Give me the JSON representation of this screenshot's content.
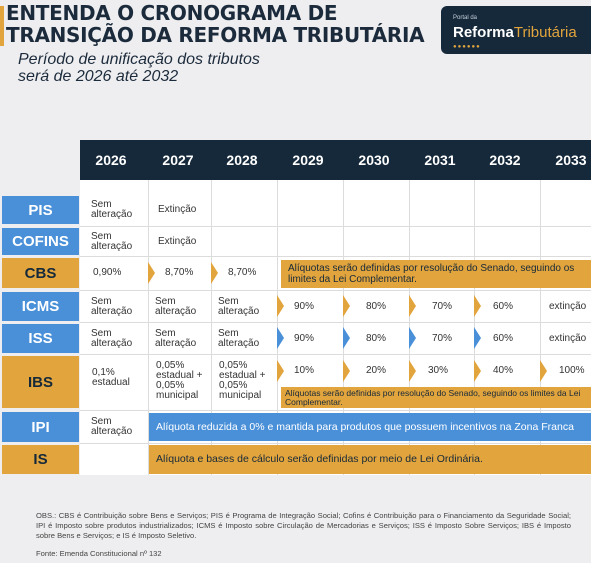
{
  "header": {
    "title_line1": "ENTENDA O CRONOGRAMA DE",
    "title_line2": "TRANSIÇÃO DA REFORMA TRIBUTÁRIA",
    "subtitle_line1": "Período de unificação dos tributos",
    "subtitle_line2": "será de 2026 até 2032"
  },
  "logo": {
    "small": "Portal da",
    "word1": "Reforma",
    "word2": "Tributária",
    "dots": "●●●●●●"
  },
  "years": [
    "2026",
    "2027",
    "2028",
    "2029",
    "2030",
    "2031",
    "2032",
    "2033"
  ],
  "rows": {
    "pis": {
      "label": "PIS",
      "c2026": "Sem alteração",
      "c2027": "Extinção"
    },
    "cofins": {
      "label": "COFINS",
      "c2026": "Sem alteração",
      "c2027": "Extinção"
    },
    "cbs": {
      "label": "CBS",
      "c2026": "0,90%",
      "c2027": "8,70%",
      "c2028": "8,70%",
      "band": "Alíquotas serão definidas por resolução do Senado, seguindo os limites da Lei Complementar."
    },
    "icms": {
      "label": "ICMS",
      "c2026": "Sem alteração",
      "c2027": "Sem alteração",
      "c2028": "Sem alteração",
      "c2029": "90%",
      "c2030": "80%",
      "c2031": "70%",
      "c2032": "60%",
      "c2033": "extinção"
    },
    "iss": {
      "label": "ISS",
      "c2026": "Sem alteração",
      "c2027": "Sem alteração",
      "c2028": "Sem alteração",
      "c2029": "90%",
      "c2030": "80%",
      "c2031": "70%",
      "c2032": "60%",
      "c2033": "extinção"
    },
    "ibs": {
      "label": "IBS",
      "c2026": "0,1% estadual",
      "c2027": "0,05% estadual + 0,05% municipal",
      "c2028": "0,05% estadual + 0,05% municipal",
      "c2029": "10%",
      "c2030": "20%",
      "c2031": "30%",
      "c2032": "40%",
      "c2033": "100%",
      "band": "Alíquotas serão definidas por resolução do Senado, seguindo os limites da Lei Complementar."
    },
    "ipi": {
      "label": "IPI",
      "c2026": "Sem alteração",
      "band": "Alíquota reduzida a 0% e mantida para produtos que possuem incentivos na Zona Franca"
    },
    "is": {
      "label": "IS",
      "band": "Alíquota e bases de cálculo serão definidas por meio de Lei Ordinária."
    }
  },
  "colors": {
    "navy": "#15293b",
    "blue": "#4a90d9",
    "orange": "#e2a43c"
  },
  "obs": "OBS.: CBS é Contribuição sobre Bens e Serviços; PIS é Programa de Integração Social; Cofins é Contribuição para o Financiamento da Seguridade Social; IPI é Imposto sobre produtos industrializados; ICMS é Imposto sobre Circulação de Mercadorias e Serviços; ISS é Imposto Sobre Serviços; IBS é Imposto sobre Bens e Serviços; e IS é Imposto Seletivo.",
  "fonte": "Fonte: Emenda Constitucional nº 132"
}
